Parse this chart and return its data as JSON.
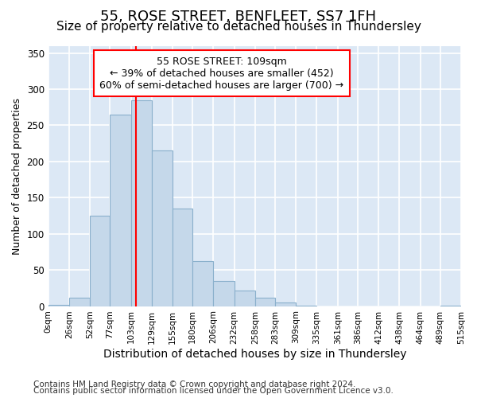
{
  "title1": "55, ROSE STREET, BENFLEET, SS7 1FH",
  "title2": "Size of property relative to detached houses in Thundersley",
  "xlabel": "Distribution of detached houses by size in Thundersley",
  "ylabel": "Number of detached properties",
  "bin_edges": [
    0,
    26,
    52,
    77,
    103,
    129,
    155,
    180,
    206,
    232,
    258,
    283,
    309,
    335,
    361,
    386,
    412,
    438,
    464,
    489,
    515
  ],
  "counts": [
    2,
    12,
    125,
    265,
    285,
    215,
    135,
    62,
    35,
    22,
    12,
    5,
    1,
    0,
    0,
    0,
    0,
    0,
    0,
    1
  ],
  "bar_color": "#c5d8ea",
  "bar_edge_color": "#8ab0cc",
  "red_line_x": 109,
  "annotation_text": "55 ROSE STREET: 109sqm\n← 39% of detached houses are smaller (452)\n60% of semi-detached houses are larger (700) →",
  "ylim_max": 360,
  "yticks": [
    0,
    50,
    100,
    150,
    200,
    250,
    300,
    350
  ],
  "xtick_labels": [
    "0sqm",
    "26sqm",
    "52sqm",
    "77sqm",
    "103sqm",
    "129sqm",
    "155sqm",
    "180sqm",
    "206sqm",
    "232sqm",
    "258sqm",
    "283sqm",
    "309sqm",
    "335sqm",
    "361sqm",
    "386sqm",
    "412sqm",
    "438sqm",
    "464sqm",
    "489sqm",
    "515sqm"
  ],
  "footer1": "Contains HM Land Registry data © Crown copyright and database right 2024.",
  "footer2": "Contains public sector information licensed under the Open Government Licence v3.0.",
  "fig_bg_color": "#ffffff",
  "plot_bg_color": "#dce8f5",
  "grid_color": "#ffffff",
  "title1_fontsize": 13,
  "title2_fontsize": 11,
  "xlabel_fontsize": 10,
  "ylabel_fontsize": 9,
  "tick_fontsize": 8.5,
  "footer_fontsize": 7.5,
  "annot_fontsize": 9
}
